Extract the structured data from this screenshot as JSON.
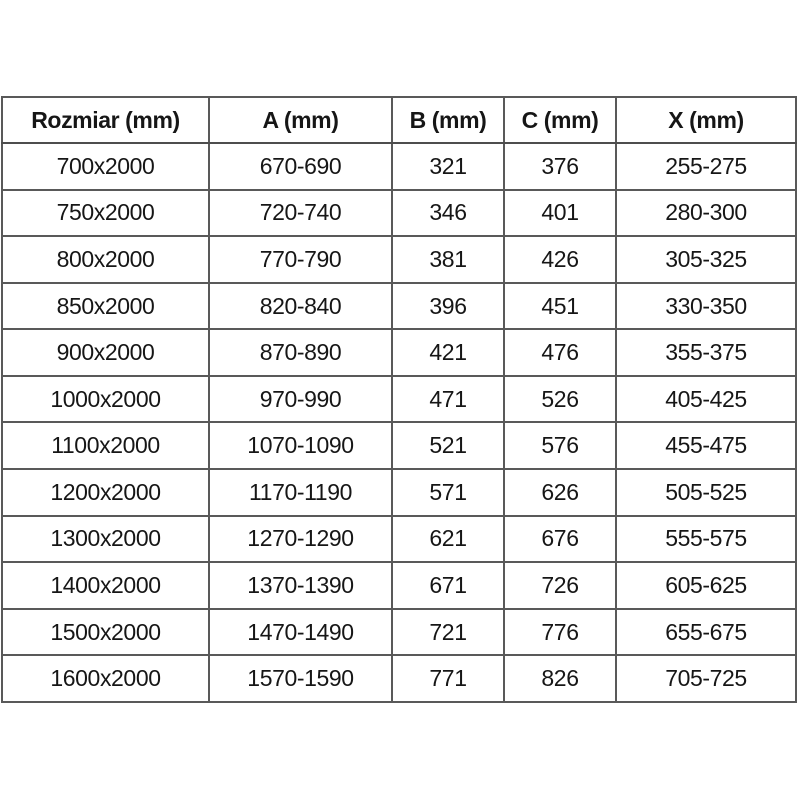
{
  "page": {
    "background_color": "#ffffff",
    "text_color": "#161616",
    "border_color": "#595959"
  },
  "chart_data": {
    "type": "table",
    "title": "",
    "columns": [
      "Rozmiar (mm)",
      "A (mm)",
      "B (mm)",
      "C (mm)",
      "X (mm)"
    ],
    "rows": [
      [
        "700x2000",
        "670-690",
        "321",
        "376",
        "255-275"
      ],
      [
        "750x2000",
        "720-740",
        "346",
        "401",
        "280-300"
      ],
      [
        "800x2000",
        "770-790",
        "381",
        "426",
        "305-325"
      ],
      [
        "850x2000",
        "820-840",
        "396",
        "451",
        "330-350"
      ],
      [
        "900x2000",
        "870-890",
        "421",
        "476",
        "355-375"
      ],
      [
        "1000x2000",
        "970-990",
        "471",
        "526",
        "405-425"
      ],
      [
        "1100x2000",
        "1070-1090",
        "521",
        "576",
        "455-475"
      ],
      [
        "1200x2000",
        "1170-1190",
        "571",
        "626",
        "505-525"
      ],
      [
        "1300x2000",
        "1270-1290",
        "621",
        "676",
        "555-575"
      ],
      [
        "1400x2000",
        "1370-1390",
        "671",
        "726",
        "605-625"
      ],
      [
        "1500x2000",
        "1470-1490",
        "721",
        "776",
        "655-675"
      ],
      [
        "1600x2000",
        "1570-1590",
        "771",
        "826",
        "705-725"
      ]
    ]
  }
}
